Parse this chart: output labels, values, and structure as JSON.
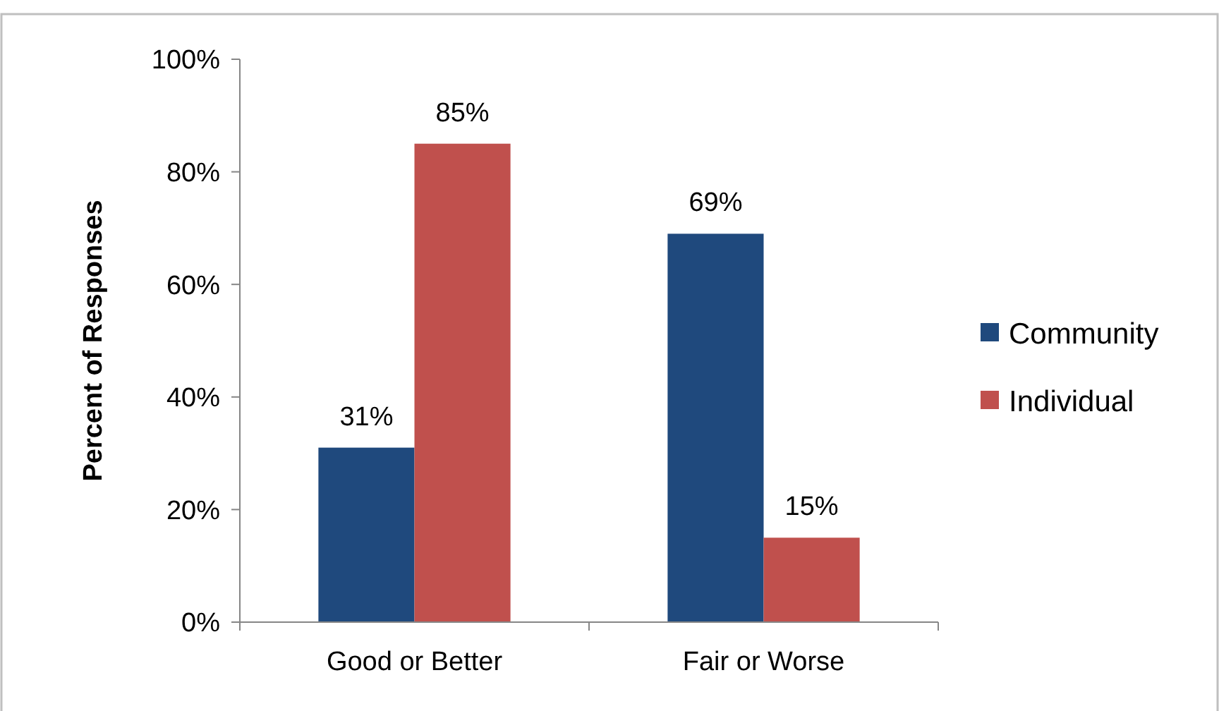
{
  "chart_data": {
    "type": "bar",
    "ylabel": "Percent of Responses",
    "categories": [
      "Good or Better",
      "Fair or Worse"
    ],
    "series": [
      {
        "name": "Community",
        "color": "#1f497d",
        "values": [
          31,
          69
        ],
        "value_labels": [
          "31%",
          "69%"
        ]
      },
      {
        "name": "Individual",
        "color": "#c0504d",
        "values": [
          85,
          15
        ],
        "value_labels": [
          "85%",
          "15%"
        ]
      }
    ],
    "ylim": [
      0,
      100
    ],
    "yticks": [
      {
        "value": 0,
        "label": "0%"
      },
      {
        "value": 20,
        "label": "20%"
      },
      {
        "value": 40,
        "label": "40%"
      },
      {
        "value": 60,
        "label": "60%"
      },
      {
        "value": 80,
        "label": "80%"
      },
      {
        "value": 100,
        "label": "100%"
      }
    ],
    "grid": false,
    "legend": "right"
  }
}
